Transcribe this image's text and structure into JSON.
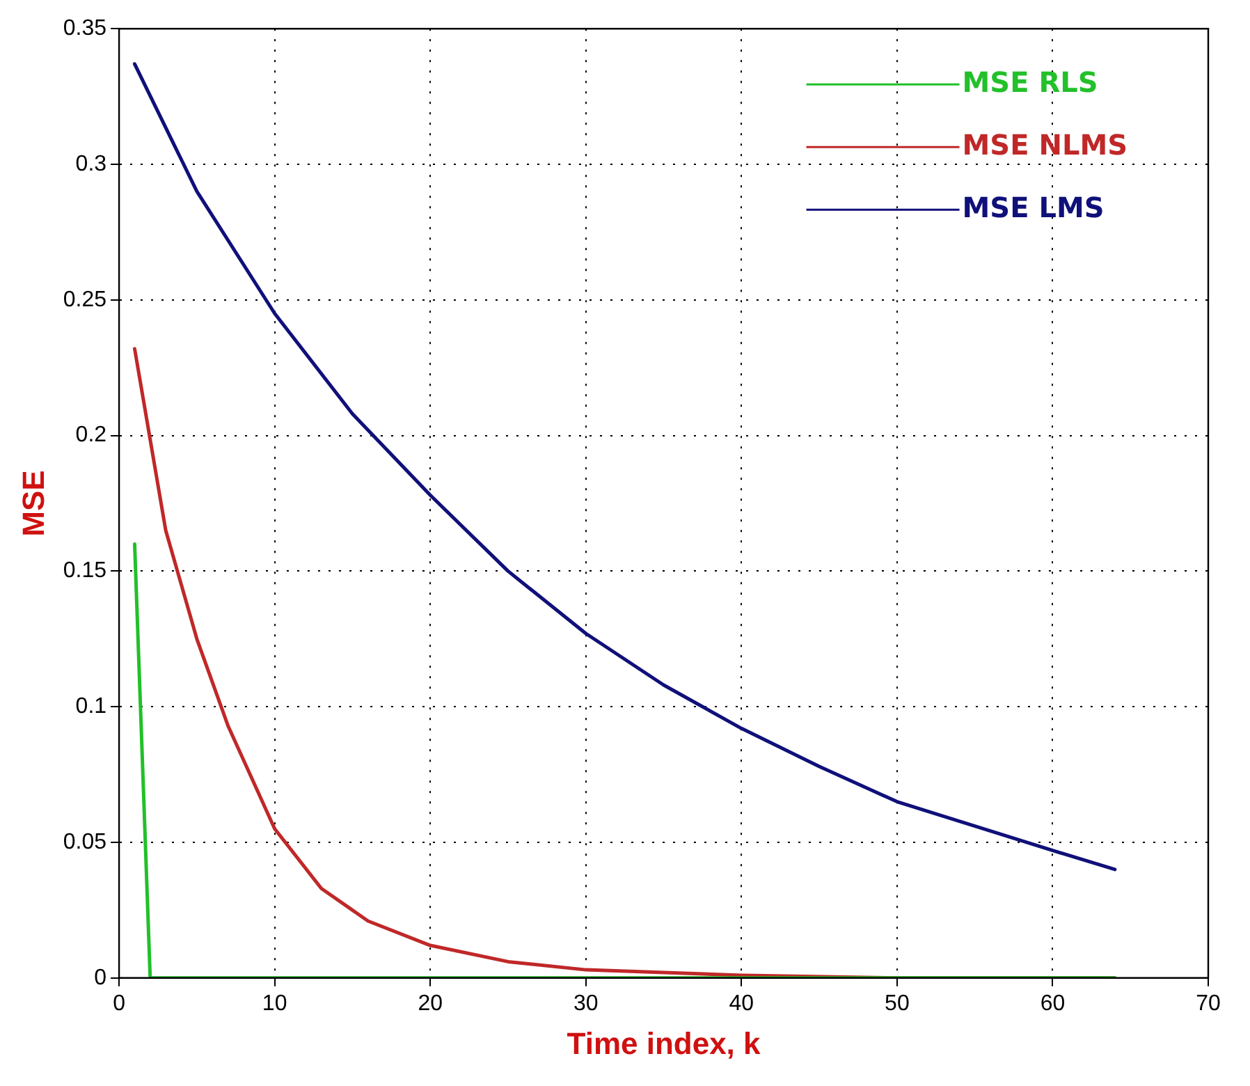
{
  "chart_data": {
    "type": "line",
    "xlabel": "Time index, k",
    "ylabel": "MSE",
    "xlim": [
      0,
      70
    ],
    "xticks": [
      0,
      10,
      20,
      30,
      40,
      50,
      60,
      70
    ],
    "ylim": [
      0,
      0.35
    ],
    "yticks": [
      0,
      0.05,
      0.1,
      0.15,
      0.2,
      0.25,
      0.3,
      0.35
    ],
    "grid": true,
    "legend": "top right",
    "marker": "none",
    "line_style": "solid",
    "series": [
      {
        "name": "MSE RLS",
        "color": "#22c02a",
        "x": [
          1,
          2,
          64
        ],
        "values": [
          0.16,
          0,
          0
        ]
      },
      {
        "name": "MSE NLMS",
        "color": "#c02828",
        "x": [
          1,
          3,
          5,
          7,
          10,
          13,
          16,
          20,
          25,
          30,
          40,
          50,
          64
        ],
        "values": [
          0.232,
          0.165,
          0.125,
          0.093,
          0.055,
          0.033,
          0.021,
          0.012,
          0.006,
          0.003,
          0.001,
          0,
          0
        ]
      },
      {
        "name": "MSE LMS",
        "color": "#10107a",
        "x": [
          1,
          5,
          10,
          15,
          20,
          25,
          30,
          35,
          40,
          45,
          50,
          55,
          60,
          64
        ],
        "values": [
          0.337,
          0.29,
          0.245,
          0.208,
          0.178,
          0.15,
          0.127,
          0.108,
          0.092,
          0.078,
          0.065,
          0.056,
          0.047,
          0.04
        ]
      }
    ]
  }
}
